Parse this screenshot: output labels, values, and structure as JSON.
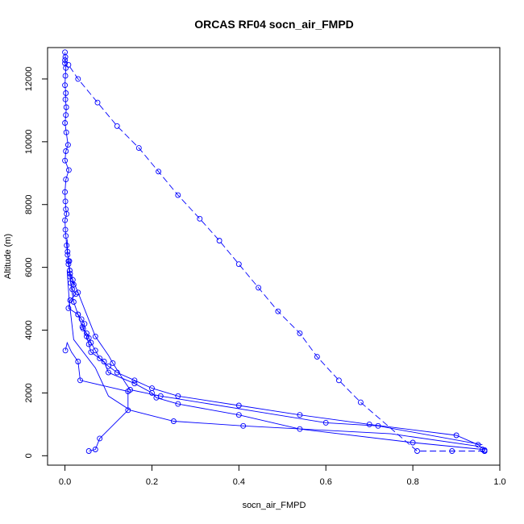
{
  "chart_data": {
    "type": "line",
    "title": "ORCAS RF04 socn_air_FMPD",
    "xlabel": "socn_air_FMPD",
    "ylabel": "Altitude (m)",
    "xlim": [
      -0.04,
      1.0
    ],
    "ylim": [
      -300,
      13000
    ],
    "x_ticks": [
      0.0,
      0.2,
      0.4,
      0.6,
      0.8,
      1.0
    ],
    "x_tick_labels": [
      "0.0",
      "0.2",
      "0.4",
      "0.6",
      "0.8",
      "1.0"
    ],
    "y_ticks": [
      0,
      2000,
      4000,
      6000,
      8000,
      10000,
      12000
    ],
    "y_tick_labels": [
      "0",
      "2000",
      "4000",
      "6000",
      "8000",
      "10000",
      "12000"
    ],
    "grid": false,
    "legend": "none",
    "series_color": "#0000ff",
    "series": [
      {
        "x": [
          0.0,
          0.001,
          0.0,
          0.002,
          0.001,
          0.0,
          0.002,
          0.001,
          0.003,
          0.002,
          0.0,
          0.003,
          0.007,
          0.002,
          0.0,
          0.009,
          0.002,
          0.0,
          0.001,
          0.002,
          0.004,
          0.0,
          0.001,
          0.002,
          0.004,
          0.006,
          0.01,
          0.008,
          0.011,
          0.012,
          0.018,
          0.02,
          0.017,
          0.025,
          0.012,
          0.008,
          0.03,
          0.038,
          0.045,
          0.042,
          0.05,
          0.055,
          0.06,
          0.07,
          0.08,
          0.1,
          0.12,
          0.16,
          0.2,
          0.26,
          0.4,
          0.54,
          0.7,
          0.9,
          0.95,
          0.965,
          0.965
        ],
        "y": [
          12850,
          12700,
          12500,
          12350,
          12100,
          11800,
          11550,
          11350,
          11100,
          10850,
          10600,
          10300,
          9900,
          9700,
          9400,
          9100,
          8800,
          8400,
          8100,
          7850,
          7700,
          7500,
          7200,
          7000,
          6700,
          6400,
          6200,
          6100,
          5900,
          5700,
          5600,
          5450,
          5300,
          5150,
          4950,
          4700,
          4500,
          4350,
          4200,
          4050,
          3900,
          3750,
          3600,
          3350,
          3100,
          2850,
          2650,
          2400,
          2150,
          1900,
          1600,
          1300,
          1000,
          650,
          350,
          180,
          150
        ]
      },
      {
        "x": [
          0.96,
          0.8,
          0.54,
          0.4,
          0.26,
          0.21,
          0.2,
          0.16,
          0.1,
          0.09,
          0.06,
          0.055,
          0.05,
          0.04,
          0.03,
          0.02,
          0.013,
          0.008
        ],
        "y": [
          200,
          420,
          850,
          1300,
          1650,
          1850,
          2000,
          2300,
          2650,
          3000,
          3300,
          3550,
          3800,
          4100,
          4500,
          4900,
          5500,
          6200
        ]
      },
      {
        "x": [
          0.96,
          0.72,
          0.6,
          0.22,
          0.15,
          0.14,
          0.11,
          0.1,
          0.07,
          0.05,
          0.03,
          0.012,
          0.006,
          0.005
        ],
        "y": [
          350,
          950,
          1050,
          1900,
          2100,
          2300,
          2950,
          3200,
          3800,
          4500,
          5200,
          5800,
          6500,
          6900
        ],
        "marker_x": [
          0.72,
          0.6,
          0.22,
          0.15,
          0.11,
          0.07,
          0.03,
          0.012,
          0.006
        ],
        "marker_y": [
          950,
          1050,
          1900,
          2100,
          2950,
          3800,
          5200,
          5800,
          6500
        ]
      },
      {
        "x": [
          0.95,
          0.75,
          0.41,
          0.25,
          0.15,
          0.1,
          0.07,
          0.02,
          0.01,
          0.005
        ],
        "y": [
          300,
          700,
          950,
          1100,
          1450,
          1900,
          2800,
          3700,
          4900,
          5900
        ],
        "marker_x": [
          0.41,
          0.25
        ],
        "marker_y": [
          950,
          1100
        ]
      },
      {
        "x": [
          0.055,
          0.07,
          0.08,
          0.145,
          0.145,
          0.035,
          0.03,
          0.015,
          0.005,
          0.001
        ],
        "y": [
          150,
          200,
          550,
          1450,
          2050,
          2400,
          3000,
          3300,
          3600,
          3350
        ],
        "marker_x": [
          0.055,
          0.07,
          0.08,
          0.145,
          0.145,
          0.035,
          0.03,
          0.001
        ],
        "marker_y": [
          150,
          200,
          550,
          1450,
          2050,
          2400,
          3000,
          3350
        ]
      },
      {
        "x": [
          0.965,
          0.89,
          0.81,
          0.68,
          0.63,
          0.58,
          0.54,
          0.49,
          0.445,
          0.4,
          0.355,
          0.31,
          0.26,
          0.215,
          0.17,
          0.12,
          0.075,
          0.03,
          0.008,
          0.0
        ],
        "y": [
          150,
          150,
          150,
          1700,
          2400,
          3150,
          3900,
          4600,
          5350,
          6100,
          6850,
          7550,
          8300,
          9050,
          9800,
          10500,
          11250,
          12000,
          12450,
          12600
        ],
        "dashed": true
      }
    ]
  }
}
